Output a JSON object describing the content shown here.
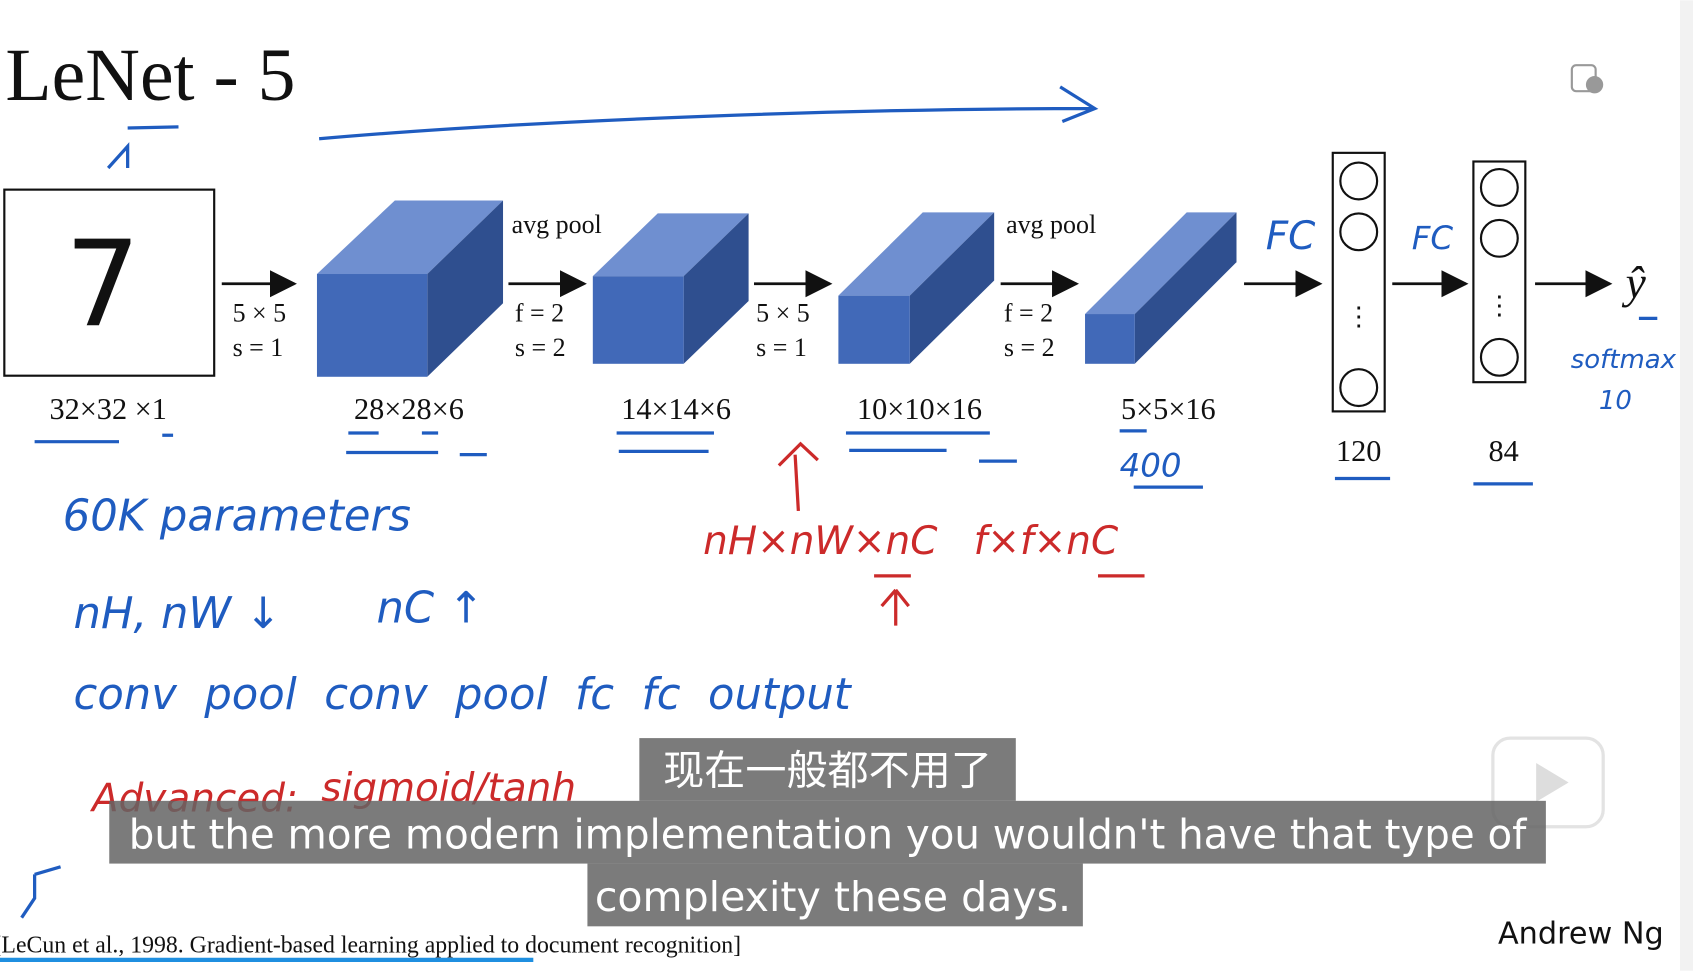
{
  "slide": {
    "title": "LeNet - 5",
    "input_digit": "7",
    "layers": [
      "32×32 ×1",
      "28×28×6",
      "14×14×6",
      "10×10×16",
      "5×5×16",
      "120",
      "84"
    ],
    "operations": [
      {
        "name": null,
        "lines": [
          "5 × 5",
          "s = 1"
        ]
      },
      {
        "name": "avg pool",
        "lines": [
          "f = 2",
          "s = 2"
        ]
      },
      {
        "name": null,
        "lines": [
          "5 × 5",
          "s = 1"
        ]
      },
      {
        "name": "avg pool",
        "lines": [
          "f = 2",
          "s = 2"
        ]
      }
    ],
    "output": "ŷ",
    "citation": "[LeCun et al., 1998. Gradient-based learning applied to document recognition]",
    "author": "Andrew Ng"
  },
  "annotations": {
    "fc1": "FC",
    "fc2": "FC",
    "softmax": "softmax",
    "softmax_count": "10",
    "flatten": "400",
    "parameters": "60K parameters",
    "shrink": "nH, nW ↓",
    "grow": "nC ↑",
    "sequence": "conv  pool  conv  pool  fc  fc  output",
    "advanced": "Advanced:",
    "activation": "sigmoid/tanh",
    "volume": "nH×nW×nC",
    "filter": "f×f×nC"
  },
  "subtitles": {
    "chinese": "现在一般都不用了",
    "english_1": "but the more modern implementation you wouldn't have that type of",
    "english_2": "complexity these days."
  }
}
